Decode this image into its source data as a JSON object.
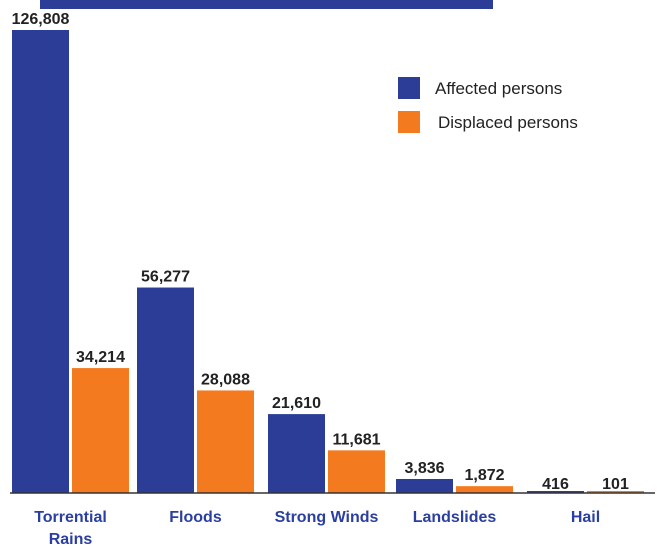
{
  "chart_data": {
    "type": "bar",
    "categories": [
      "Torrential Rains",
      "Floods",
      "Strong Winds",
      "Landslides",
      "Hail"
    ],
    "category_label_lines": [
      [
        "Torrential",
        "Rains"
      ],
      [
        "Floods"
      ],
      [
        "Strong Winds"
      ],
      [
        "Landslides"
      ],
      [
        "Hail"
      ]
    ],
    "series": [
      {
        "name": "Affected persons",
        "color": "#2b3d96",
        "values": [
          126808,
          56277,
          21610,
          3836,
          416
        ],
        "labels": [
          "126,808",
          "56,277",
          "21,610",
          "3,836",
          "416"
        ]
      },
      {
        "name": "Displaced persons",
        "color": "#f47a20",
        "values": [
          34214,
          28088,
          11681,
          1872,
          101
        ],
        "labels": [
          "34,214",
          "28,088",
          "11,681",
          "1,872",
          "101"
        ]
      }
    ],
    "ylim": [
      0,
      126808
    ],
    "grid": false,
    "legend_position": "top-right",
    "title": "",
    "xlabel": "",
    "ylabel": ""
  },
  "colors": {
    "axis": "#333333",
    "top_band": "#2b3d96",
    "category_text": "#2b3fa0"
  }
}
